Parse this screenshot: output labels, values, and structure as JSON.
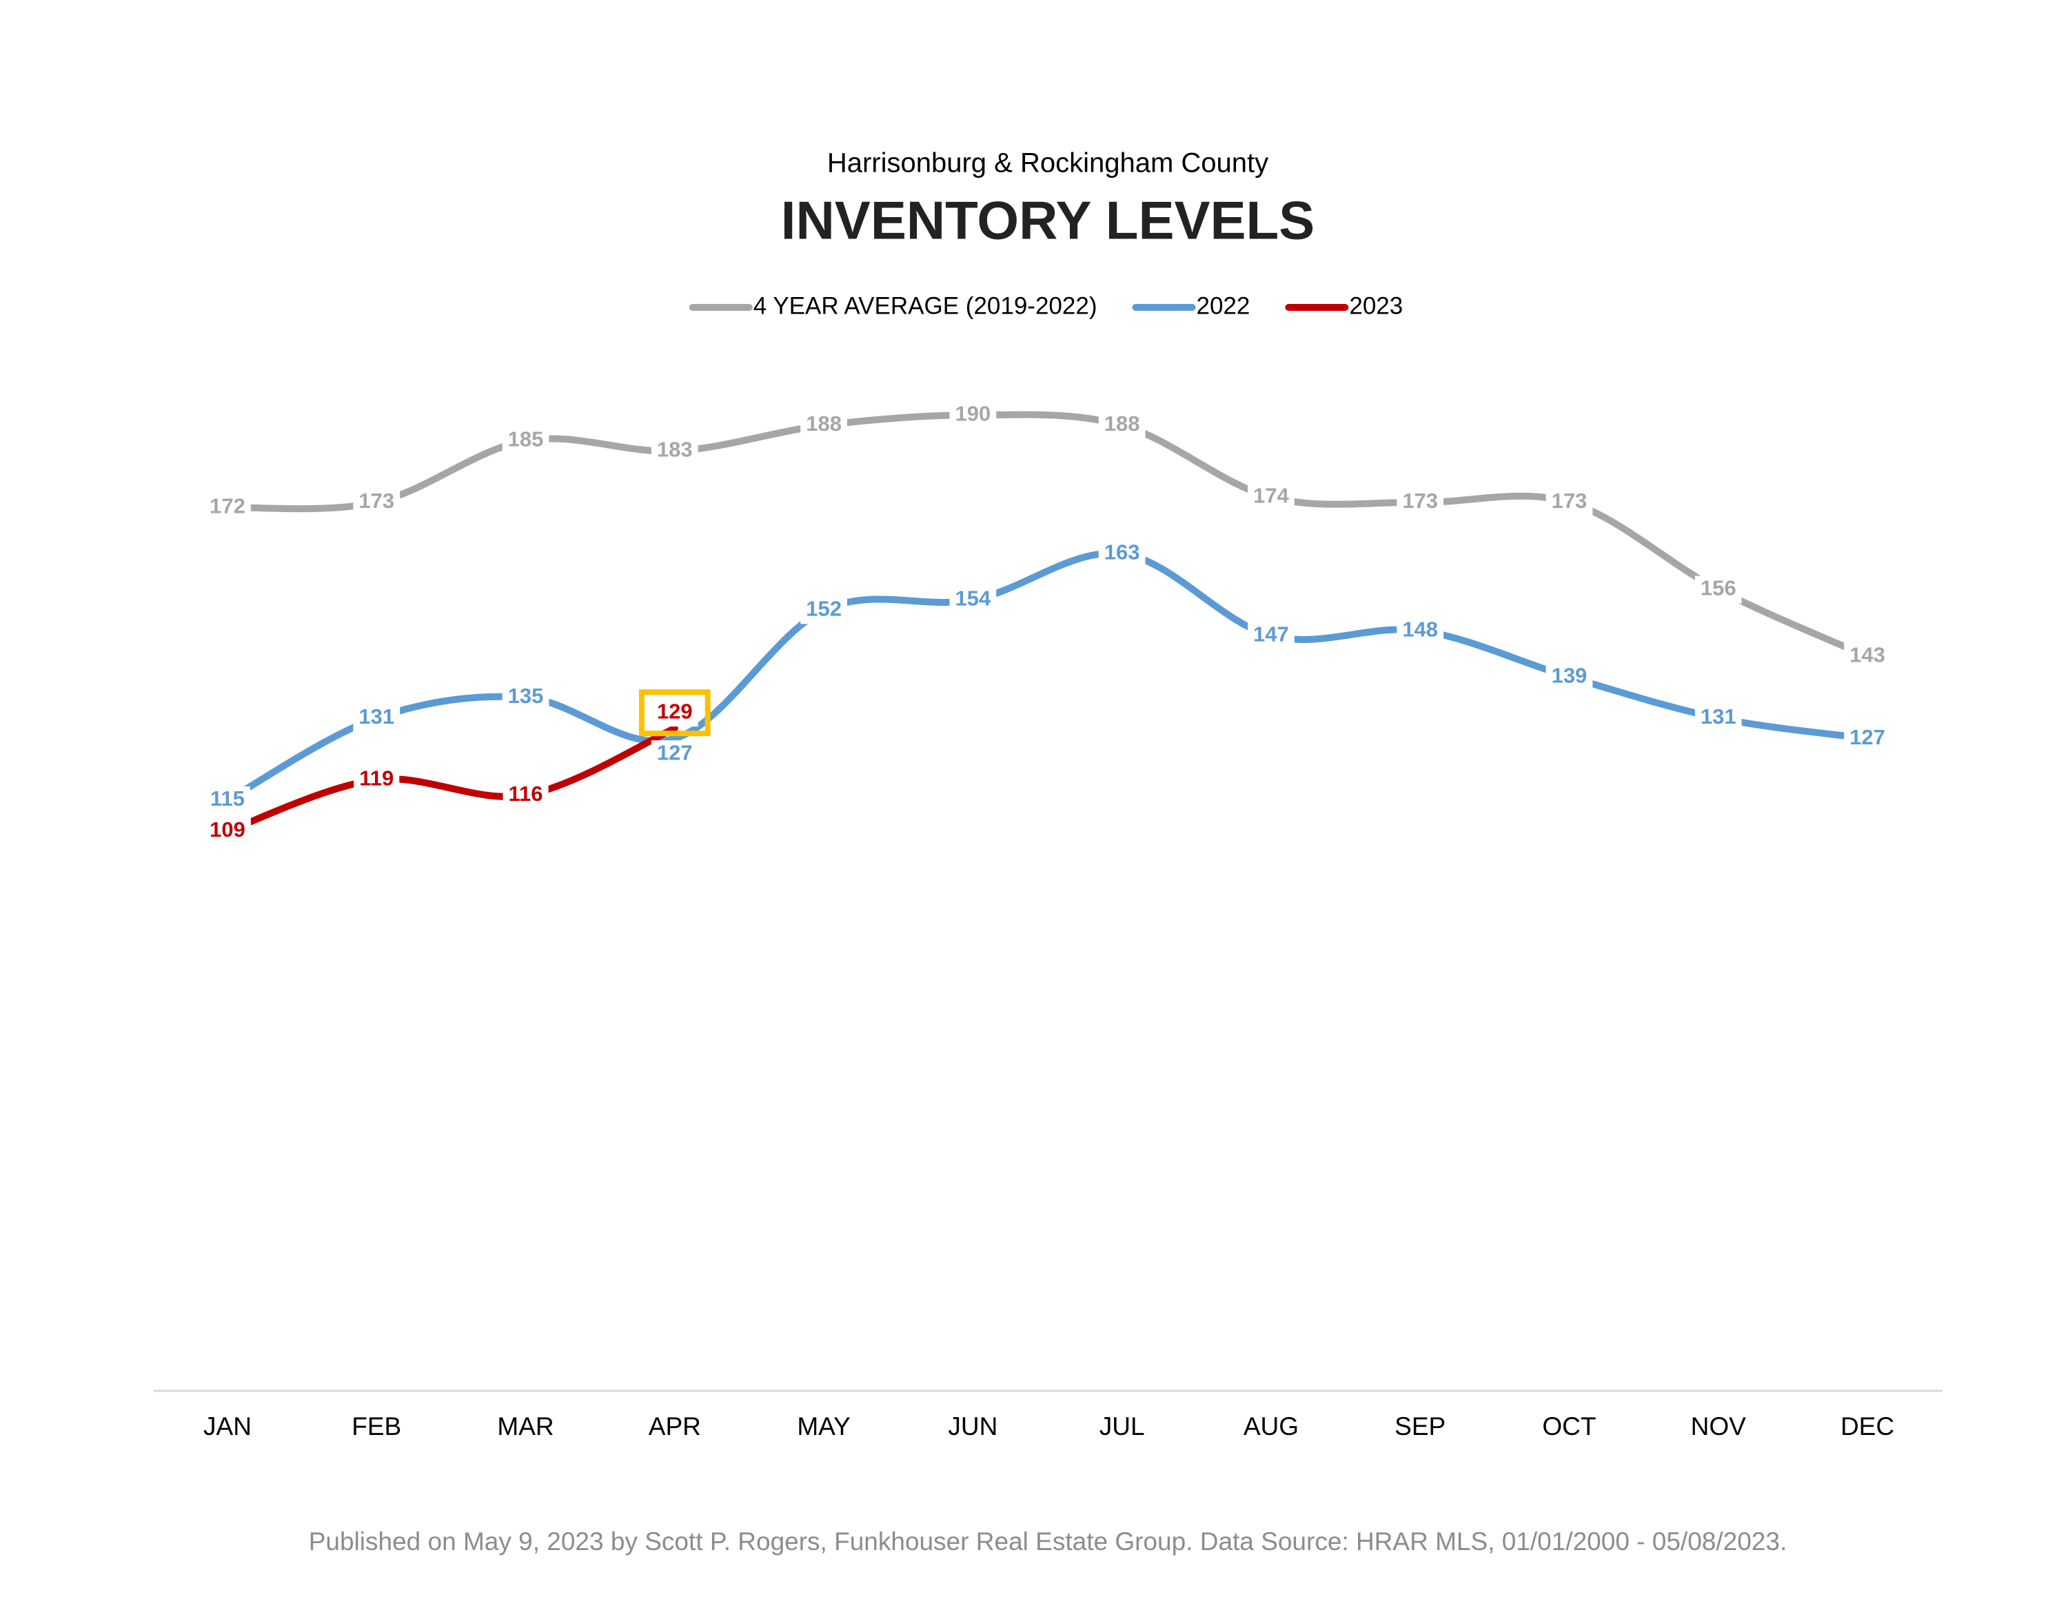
{
  "chart_data": {
    "type": "line",
    "subtitle": "Harrisonburg & Rockingham County",
    "title": "INVENTORY LEVELS",
    "categories": [
      "JAN",
      "FEB",
      "MAR",
      "APR",
      "MAY",
      "JUN",
      "JUL",
      "AUG",
      "SEP",
      "OCT",
      "NOV",
      "DEC"
    ],
    "series": [
      {
        "name": "4 YEAR AVERAGE (2019-2022)",
        "color": "#a6a6a6",
        "values": [
          172,
          173,
          185,
          183,
          188,
          190,
          188,
          174,
          173,
          173,
          156,
          143
        ]
      },
      {
        "name": "2022",
        "color": "#5b9bd5",
        "values": [
          115,
          131,
          135,
          127,
          152,
          154,
          163,
          147,
          148,
          139,
          131,
          127
        ]
      },
      {
        "name": "2023",
        "color": "#c00000",
        "values": [
          109,
          119,
          116,
          129,
          null,
          null,
          null,
          null,
          null,
          null,
          null,
          null
        ]
      }
    ],
    "ylim": [
      0,
      250
    ],
    "grid": false,
    "footer": "Published on May 9, 2023 by Scott P. Rogers, Funkhouser Real Estate Group. Data Source: HRAR MLS, 01/01/2000 - 05/08/2023."
  }
}
